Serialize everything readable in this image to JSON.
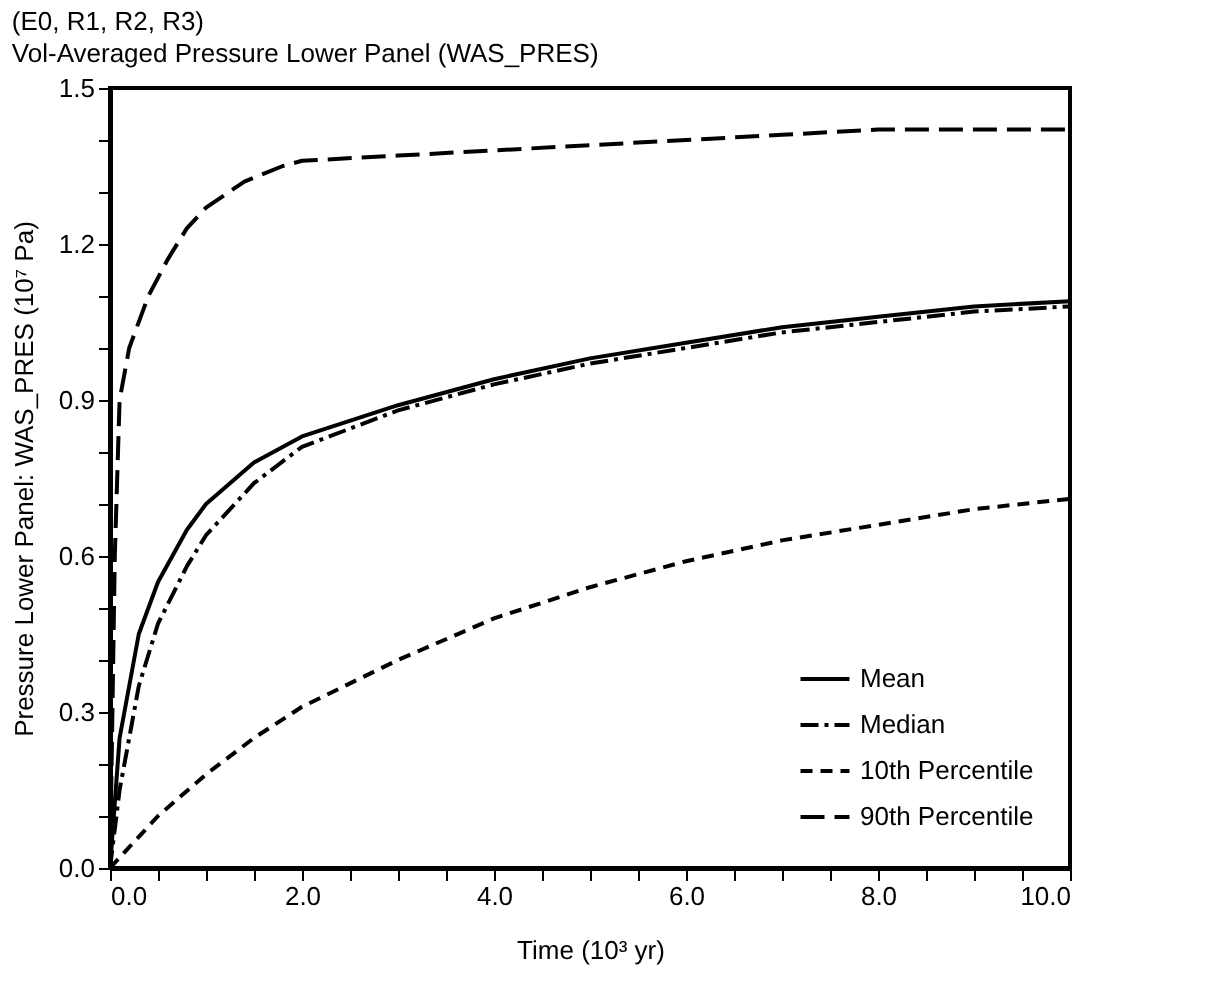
{
  "chart_data": {
    "type": "line",
    "title": "(E0, R1, R2, R3)",
    "subtitle": "Vol-Averaged Pressure Lower Panel (WAS_PRES)",
    "xlabel": "Time (10³ yr)",
    "ylabel": "Pressure Lower Panel: WAS_PRES (10⁷ Pa)",
    "xlim": [
      0,
      10
    ],
    "ylim": [
      0,
      1.5
    ],
    "xticks": [
      {
        "value": 0,
        "label": "0.0"
      },
      {
        "value": 0.5,
        "label": null
      },
      {
        "value": 1,
        "label": null
      },
      {
        "value": 1.5,
        "label": null
      },
      {
        "value": 2,
        "label": "2.0"
      },
      {
        "value": 2.5,
        "label": null
      },
      {
        "value": 3,
        "label": null
      },
      {
        "value": 3.5,
        "label": null
      },
      {
        "value": 4,
        "label": "4.0"
      },
      {
        "value": 4.5,
        "label": null
      },
      {
        "value": 5,
        "label": null
      },
      {
        "value": 5.5,
        "label": null
      },
      {
        "value": 6,
        "label": "6.0"
      },
      {
        "value": 6.5,
        "label": null
      },
      {
        "value": 7,
        "label": null
      },
      {
        "value": 7.5,
        "label": null
      },
      {
        "value": 8,
        "label": "8.0"
      },
      {
        "value": 8.5,
        "label": null
      },
      {
        "value": 9,
        "label": null
      },
      {
        "value": 9.5,
        "label": null
      },
      {
        "value": 10,
        "label": "10.0"
      }
    ],
    "yticks": [
      {
        "value": 0,
        "label": "0.0"
      },
      {
        "value": 0.1,
        "label": null
      },
      {
        "value": 0.2,
        "label": null
      },
      {
        "value": 0.3,
        "label": "0.3"
      },
      {
        "value": 0.4,
        "label": null
      },
      {
        "value": 0.5,
        "label": null
      },
      {
        "value": 0.6,
        "label": "0.6"
      },
      {
        "value": 0.7,
        "label": null
      },
      {
        "value": 0.8,
        "label": null
      },
      {
        "value": 0.9,
        "label": "0.9"
      },
      {
        "value": 1.0,
        "label": null
      },
      {
        "value": 1.1,
        "label": null
      },
      {
        "value": 1.2,
        "label": "1.2"
      },
      {
        "value": 1.3,
        "label": null
      },
      {
        "value": 1.4,
        "label": null
      },
      {
        "value": 1.5,
        "label": "1.5"
      }
    ],
    "grid": false,
    "legend": "bottom right",
    "marker": "none",
    "series": [
      {
        "name": "Mean",
        "color": "#000000",
        "line_style": "solid",
        "x": [
          0,
          0.1,
          0.3,
          0.5,
          0.8,
          1,
          1.5,
          2,
          3,
          4,
          5,
          6,
          7,
          8,
          9,
          10
        ],
        "values": [
          0,
          0.25,
          0.45,
          0.55,
          0.65,
          0.7,
          0.78,
          0.83,
          0.89,
          0.94,
          0.98,
          1.01,
          1.04,
          1.06,
          1.08,
          1.09
        ]
      },
      {
        "name": "Median",
        "color": "#000000",
        "line_style": "dashdot",
        "x": [
          0,
          0.1,
          0.3,
          0.5,
          0.8,
          1,
          1.5,
          2,
          3,
          4,
          5,
          6,
          7,
          8,
          9,
          10
        ],
        "values": [
          0,
          0.15,
          0.35,
          0.47,
          0.58,
          0.64,
          0.74,
          0.81,
          0.88,
          0.93,
          0.97,
          1.0,
          1.03,
          1.05,
          1.07,
          1.08
        ]
      },
      {
        "name": "10th Percentile",
        "color": "#000000",
        "line_style": "dashed",
        "x": [
          0,
          0.2,
          0.5,
          1,
          1.5,
          2,
          3,
          4,
          5,
          6,
          7,
          8,
          9,
          10
        ],
        "values": [
          0,
          0.04,
          0.1,
          0.18,
          0.25,
          0.31,
          0.4,
          0.48,
          0.54,
          0.59,
          0.63,
          0.66,
          0.69,
          0.71
        ]
      },
      {
        "name": "90th Percentile",
        "color": "#000000",
        "line_style": "longdashed",
        "x": [
          0,
          0.05,
          0.1,
          0.2,
          0.4,
          0.6,
          0.8,
          1,
          1.4,
          1.8,
          2,
          3,
          4,
          5,
          6,
          7,
          8,
          9,
          10
        ],
        "values": [
          0,
          0.6,
          0.9,
          1.0,
          1.1,
          1.17,
          1.23,
          1.27,
          1.32,
          1.35,
          1.36,
          1.37,
          1.38,
          1.39,
          1.4,
          1.41,
          1.42,
          1.42,
          1.42
        ]
      }
    ]
  }
}
